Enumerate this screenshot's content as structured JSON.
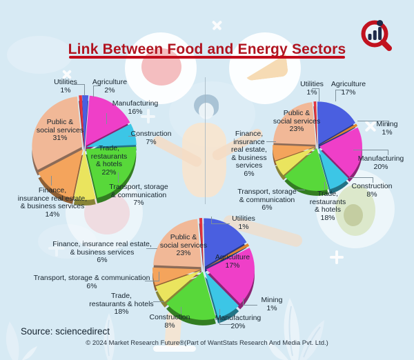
{
  "page": {
    "title": "Link Between Food and Energy Sectors",
    "source": "Source: sciencedirect",
    "copyright": "© 2024 Market Research Future®(Part of WantStats Research And Media Pvt. Ltd.)",
    "logo": "market-research-future-logo"
  },
  "colors": {
    "background": "#d7eaf4",
    "title": "#b11420",
    "underline": "#c20d1c",
    "label_text": "#17242e",
    "leader_line": "#7e909b",
    "logo_ring": "#c1121f",
    "logo_bars": "#1e2a49"
  },
  "chart_data": [
    {
      "type": "pie",
      "position": "top-left",
      "legend_position": "around-slices",
      "slices": [
        {
          "label": "Utilities",
          "value": 1,
          "color": "#e23540",
          "display": "Utilities\n1%"
        },
        {
          "label": "Agriculture",
          "value": 2,
          "color": "#4a5fe0",
          "display": "Agriculture\n2%"
        },
        {
          "label": "Manufacturing",
          "value": 16,
          "color": "#ef3fc8",
          "display": "Manufacturing\n16%"
        },
        {
          "label": "Construction",
          "value": 7,
          "color": "#3cc6e6",
          "display": "Construction\n7%"
        },
        {
          "label": "Trade, restaurants & hotels",
          "value": 22,
          "color": "#58d83a",
          "display": "Trade,\nrestaurants\n& hotels\n22%"
        },
        {
          "label": "Transport, storage & communication",
          "value": 7,
          "color": "#eae45e",
          "display": "Transport, storage\n& communication\n7%"
        },
        {
          "label": "Finance, insurance real estate, & business services",
          "value": 14,
          "color": "#f4a45c",
          "display": "Finance,\ninsurance real estate,\n& business services\n14%"
        },
        {
          "label": "Public & social services",
          "value": 31,
          "color": "#f1b897",
          "display": "Public &\nsocial services\n31%"
        }
      ]
    },
    {
      "type": "pie",
      "position": "top-right",
      "legend_position": "around-slices",
      "slices": [
        {
          "label": "Utilities",
          "value": 1,
          "color": "#e23540",
          "display": "Utilities\n1%"
        },
        {
          "label": "Agriculture",
          "value": 17,
          "color": "#4a5fe0",
          "display": "Agriculture\n17%"
        },
        {
          "label": "Mining",
          "value": 1,
          "color": "#e0862c",
          "display": "Mining\n1%"
        },
        {
          "label": "Manufacturing",
          "value": 20,
          "color": "#ef3fc8",
          "display": "Manufacturing\n20%"
        },
        {
          "label": "Construction",
          "value": 8,
          "color": "#3cc6e6",
          "display": "Construction\n8%"
        },
        {
          "label": "Trade, restaurants & hotels",
          "value": 18,
          "color": "#58d83a",
          "display": "Trade,\nrestaurants\n& hotels\n18%"
        },
        {
          "label": "Transport, storage & communication",
          "value": 6,
          "color": "#eae45e",
          "display": "Transport, storage\n& communication\n6%"
        },
        {
          "label": "Finance, insurance real estate, & business services",
          "value": 6,
          "color": "#f4a45c",
          "display": "Finance,\ninsurance\nreal estate,\n& business\nservices\n6%"
        },
        {
          "label": "Public & social services",
          "value": 23,
          "color": "#f1b897",
          "display": "Public &\nsocial services\n23%"
        }
      ]
    },
    {
      "type": "pie",
      "position": "bottom-center",
      "legend_position": "around-slices",
      "slices": [
        {
          "label": "Utilities",
          "value": 1,
          "color": "#e23540",
          "display": "Utilities\n1%"
        },
        {
          "label": "Agriculture",
          "value": 17,
          "color": "#4a5fe0",
          "display": "Agriculture\n17%"
        },
        {
          "label": "Mining",
          "value": 1,
          "color": "#e0862c",
          "display": "Mining\n1%"
        },
        {
          "label": "Manufacturing",
          "value": 20,
          "color": "#ef3fc8",
          "display": "Manufacturing\n20%"
        },
        {
          "label": "Construction",
          "value": 8,
          "color": "#3cc6e6",
          "display": "Construction\n8%"
        },
        {
          "label": "Trade, restaurants & hotels",
          "value": 18,
          "color": "#58d83a",
          "display": "Trade,\nrestaurants & hotels\n18%"
        },
        {
          "label": "Transport, storage & communication",
          "value": 6,
          "color": "#eae45e",
          "display": "Transport, storage & communication\n6%"
        },
        {
          "label": "Finance, insurance real estate, & business services",
          "value": 6,
          "color": "#f4a45c",
          "display": "Finance, insurance real estate,\n& business services\n6%"
        },
        {
          "label": "Public & social services",
          "value": 23,
          "color": "#f1b897",
          "display": "Public &\nsocial services\n23%"
        }
      ]
    }
  ]
}
